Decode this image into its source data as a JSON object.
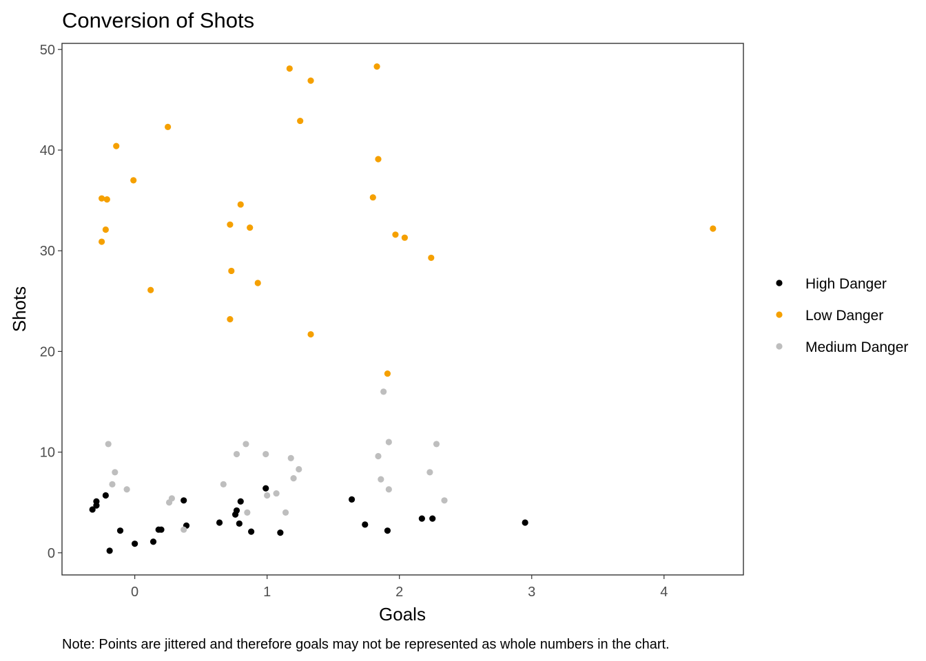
{
  "chart_data": {
    "type": "scatter",
    "title": "Conversion of Shots",
    "xlabel": "Goals",
    "ylabel": "Shots",
    "caption": "Note: Points are jittered and therefore goals may not be represented as whole numbers in the chart.",
    "xlim": [
      -0.55,
      4.6
    ],
    "ylim": [
      -2.2,
      50.6
    ],
    "x_ticks": [
      0,
      1,
      2,
      3,
      4
    ],
    "y_ticks": [
      0,
      10,
      20,
      30,
      40,
      50
    ],
    "grid": false,
    "legend_position": "right",
    "series": [
      {
        "name": "High Danger",
        "color": "#000000",
        "points": [
          [
            -0.32,
            4.3
          ],
          [
            -0.29,
            4.7
          ],
          [
            -0.29,
            5.1
          ],
          [
            -0.22,
            5.7
          ],
          [
            -0.19,
            0.2
          ],
          [
            -0.11,
            2.2
          ],
          [
            0.0,
            0.9
          ],
          [
            0.14,
            1.1
          ],
          [
            0.18,
            2.3
          ],
          [
            0.2,
            2.3
          ],
          [
            0.37,
            5.2
          ],
          [
            0.39,
            2.7
          ],
          [
            0.64,
            3.0
          ],
          [
            0.76,
            3.8
          ],
          [
            0.77,
            4.2
          ],
          [
            0.79,
            2.9
          ],
          [
            0.8,
            5.1
          ],
          [
            0.88,
            2.1
          ],
          [
            0.99,
            6.4
          ],
          [
            1.1,
            2.0
          ],
          [
            1.64,
            5.3
          ],
          [
            1.74,
            2.8
          ],
          [
            1.91,
            2.2
          ],
          [
            2.17,
            3.4
          ],
          [
            2.25,
            3.4
          ],
          [
            2.95,
            3.0
          ]
        ]
      },
      {
        "name": "Low Danger",
        "color": "#f5a000",
        "points": [
          [
            -0.25,
            30.9
          ],
          [
            -0.25,
            35.2
          ],
          [
            -0.22,
            32.1
          ],
          [
            -0.21,
            35.1
          ],
          [
            -0.14,
            40.4
          ],
          [
            -0.01,
            37.0
          ],
          [
            0.12,
            26.1
          ],
          [
            0.25,
            42.3
          ],
          [
            0.72,
            32.6
          ],
          [
            0.72,
            23.2
          ],
          [
            0.73,
            28.0
          ],
          [
            0.8,
            34.6
          ],
          [
            0.87,
            32.3
          ],
          [
            0.93,
            26.8
          ],
          [
            1.17,
            48.1
          ],
          [
            1.25,
            42.9
          ],
          [
            1.33,
            21.7
          ],
          [
            1.33,
            46.9
          ],
          [
            1.8,
            35.3
          ],
          [
            1.83,
            48.3
          ],
          [
            1.84,
            39.1
          ],
          [
            1.91,
            17.8
          ],
          [
            1.97,
            31.6
          ],
          [
            2.04,
            31.3
          ],
          [
            2.24,
            29.3
          ],
          [
            4.37,
            32.2
          ]
        ]
      },
      {
        "name": "Medium Danger",
        "color": "#bebebe",
        "points": [
          [
            -0.2,
            10.8
          ],
          [
            -0.17,
            6.8
          ],
          [
            -0.15,
            8.0
          ],
          [
            -0.06,
            6.3
          ],
          [
            0.26,
            5.0
          ],
          [
            0.28,
            5.4
          ],
          [
            0.37,
            2.3
          ],
          [
            0.67,
            6.8
          ],
          [
            0.77,
            9.8
          ],
          [
            0.84,
            10.8
          ],
          [
            0.85,
            4.0
          ],
          [
            0.99,
            9.8
          ],
          [
            1.0,
            5.7
          ],
          [
            1.07,
            5.9
          ],
          [
            1.14,
            4.0
          ],
          [
            1.18,
            9.4
          ],
          [
            1.2,
            7.4
          ],
          [
            1.24,
            8.3
          ],
          [
            1.84,
            9.6
          ],
          [
            1.86,
            7.3
          ],
          [
            1.88,
            16.0
          ],
          [
            1.92,
            11.0
          ],
          [
            1.92,
            6.3
          ],
          [
            2.23,
            8.0
          ],
          [
            2.28,
            10.8
          ],
          [
            2.34,
            5.2
          ]
        ]
      }
    ]
  }
}
